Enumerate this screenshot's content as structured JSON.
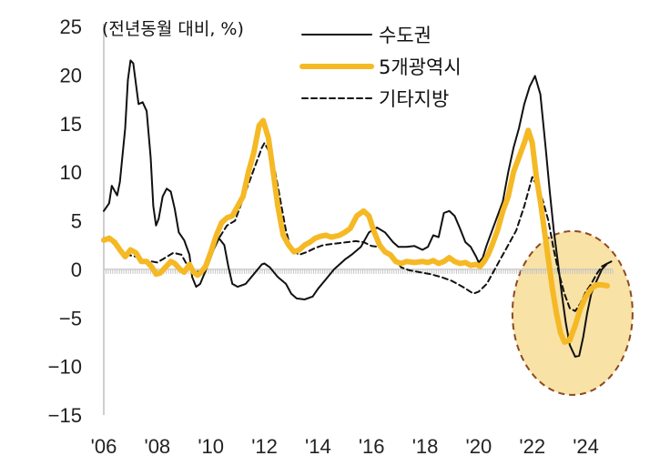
{
  "chart_data": {
    "type": "line",
    "unit_label": "(전년동월 대비, %)",
    "xlabel": "",
    "ylabel": "",
    "xlim": [
      2006,
      2025
    ],
    "ylim": [
      -15,
      25
    ],
    "y_ticks": [
      25,
      20,
      15,
      10,
      5,
      0,
      -5,
      -10,
      -15
    ],
    "y_tick_labels": [
      "25",
      "20",
      "15",
      "10",
      "5",
      "0",
      "−5",
      "−10",
      "−15"
    ],
    "x_ticks": [
      2006,
      2008,
      2010,
      2012,
      2014,
      2016,
      2018,
      2020,
      2022,
      2024
    ],
    "x_tick_labels": [
      "'06",
      "'08",
      "'10",
      "'12",
      "'14",
      "'16",
      "'18",
      "'20",
      "'22",
      "'24"
    ],
    "legend_position": "top-right",
    "highlight": {
      "shape": "ellipse",
      "center": [
        2023.5,
        -4.5
      ],
      "note": "circled recent downturn"
    },
    "series": [
      {
        "name": "수도권",
        "color": "#111111",
        "style": "solid",
        "points": [
          [
            2006.0,
            6.0
          ],
          [
            2006.2,
            6.8
          ],
          [
            2006.3,
            8.6
          ],
          [
            2006.5,
            7.6
          ],
          [
            2006.6,
            9.0
          ],
          [
            2006.8,
            14.5
          ],
          [
            2006.9,
            19.5
          ],
          [
            2007.0,
            21.5
          ],
          [
            2007.1,
            21.2
          ],
          [
            2007.3,
            17.0
          ],
          [
            2007.45,
            17.2
          ],
          [
            2007.6,
            16.3
          ],
          [
            2007.75,
            11.5
          ],
          [
            2007.85,
            6.5
          ],
          [
            2007.95,
            4.5
          ],
          [
            2008.05,
            5.2
          ],
          [
            2008.2,
            7.5
          ],
          [
            2008.35,
            8.3
          ],
          [
            2008.5,
            8.0
          ],
          [
            2008.65,
            6.2
          ],
          [
            2008.8,
            3.8
          ],
          [
            2009.0,
            3.0
          ],
          [
            2009.2,
            1.5
          ],
          [
            2009.3,
            -0.8
          ],
          [
            2009.45,
            -1.8
          ],
          [
            2009.6,
            -1.5
          ],
          [
            2009.75,
            -0.5
          ],
          [
            2009.9,
            0.5
          ],
          [
            2010.1,
            2.0
          ],
          [
            2010.3,
            3.2
          ],
          [
            2010.5,
            2.5
          ],
          [
            2010.65,
            0.3
          ],
          [
            2010.8,
            -1.5
          ],
          [
            2011.0,
            -1.8
          ],
          [
            2011.3,
            -1.5
          ],
          [
            2011.6,
            -0.5
          ],
          [
            2011.9,
            0.5
          ],
          [
            2012.0,
            0.6
          ],
          [
            2012.2,
            0.2
          ],
          [
            2012.5,
            -0.8
          ],
          [
            2012.8,
            -1.5
          ],
          [
            2013.0,
            -2.5
          ],
          [
            2013.2,
            -3.0
          ],
          [
            2013.5,
            -3.1
          ],
          [
            2013.8,
            -2.8
          ],
          [
            2014.0,
            -2.0
          ],
          [
            2014.3,
            -1.0
          ],
          [
            2014.6,
            0.0
          ],
          [
            2015.0,
            1.0
          ],
          [
            2015.3,
            1.6
          ],
          [
            2015.6,
            2.3
          ],
          [
            2015.9,
            3.8
          ],
          [
            2016.2,
            4.3
          ],
          [
            2016.5,
            3.8
          ],
          [
            2016.8,
            2.8
          ],
          [
            2017.0,
            2.3
          ],
          [
            2017.3,
            2.3
          ],
          [
            2017.6,
            2.4
          ],
          [
            2017.9,
            2.0
          ],
          [
            2018.1,
            2.3
          ],
          [
            2018.3,
            3.5
          ],
          [
            2018.5,
            3.3
          ],
          [
            2018.7,
            5.8
          ],
          [
            2018.9,
            6.0
          ],
          [
            2019.1,
            5.5
          ],
          [
            2019.3,
            4.2
          ],
          [
            2019.5,
            2.8
          ],
          [
            2019.7,
            2.3
          ],
          [
            2019.9,
            1.3
          ],
          [
            2020.0,
            0.7
          ],
          [
            2020.15,
            1.2
          ],
          [
            2020.3,
            2.5
          ],
          [
            2020.5,
            4.0
          ],
          [
            2020.7,
            5.5
          ],
          [
            2020.9,
            7.0
          ],
          [
            2021.1,
            10.0
          ],
          [
            2021.3,
            12.5
          ],
          [
            2021.5,
            14.5
          ],
          [
            2021.7,
            17.0
          ],
          [
            2021.9,
            18.8
          ],
          [
            2022.1,
            19.9
          ],
          [
            2022.3,
            18.0
          ],
          [
            2022.5,
            12.5
          ],
          [
            2022.65,
            8.0
          ],
          [
            2022.8,
            4.0
          ],
          [
            2022.95,
            0.8
          ],
          [
            2023.1,
            -2.5
          ],
          [
            2023.25,
            -5.5
          ],
          [
            2023.4,
            -7.8
          ],
          [
            2023.6,
            -9.0
          ],
          [
            2023.75,
            -8.9
          ],
          [
            2023.9,
            -7.0
          ],
          [
            2024.05,
            -4.5
          ],
          [
            2024.2,
            -2.5
          ],
          [
            2024.4,
            -1.2
          ],
          [
            2024.6,
            0.0
          ],
          [
            2024.8,
            0.6
          ],
          [
            2024.95,
            0.8
          ]
        ]
      },
      {
        "name": "5개광역시",
        "color": "#F5B925",
        "style": "thick",
        "points": [
          [
            2006.0,
            3.0
          ],
          [
            2006.2,
            3.2
          ],
          [
            2006.4,
            2.8
          ],
          [
            2006.6,
            2.0
          ],
          [
            2006.8,
            1.3
          ],
          [
            2007.0,
            2.0
          ],
          [
            2007.2,
            1.7
          ],
          [
            2007.4,
            0.8
          ],
          [
            2007.6,
            0.8
          ],
          [
            2007.8,
            0.2
          ],
          [
            2007.95,
            -0.5
          ],
          [
            2008.1,
            -0.4
          ],
          [
            2008.3,
            0.2
          ],
          [
            2008.5,
            0.8
          ],
          [
            2008.65,
            0.6
          ],
          [
            2008.85,
            0.0
          ],
          [
            2009.0,
            -0.3
          ],
          [
            2009.2,
            0.5
          ],
          [
            2009.35,
            -0.3
          ],
          [
            2009.5,
            -0.6
          ],
          [
            2009.6,
            -0.4
          ],
          [
            2009.8,
            0.3
          ],
          [
            2010.0,
            1.8
          ],
          [
            2010.2,
            3.5
          ],
          [
            2010.4,
            4.8
          ],
          [
            2010.6,
            5.3
          ],
          [
            2010.8,
            5.5
          ],
          [
            2011.0,
            6.5
          ],
          [
            2011.2,
            7.5
          ],
          [
            2011.4,
            10.0
          ],
          [
            2011.6,
            12.0
          ],
          [
            2011.8,
            14.8
          ],
          [
            2011.95,
            15.3
          ],
          [
            2012.15,
            13.5
          ],
          [
            2012.3,
            10.5
          ],
          [
            2012.5,
            6.5
          ],
          [
            2012.7,
            3.5
          ],
          [
            2012.9,
            2.5
          ],
          [
            2013.1,
            1.8
          ],
          [
            2013.3,
            2.0
          ],
          [
            2013.5,
            2.5
          ],
          [
            2013.7,
            2.8
          ],
          [
            2013.9,
            3.2
          ],
          [
            2014.1,
            3.4
          ],
          [
            2014.3,
            3.5
          ],
          [
            2014.5,
            3.3
          ],
          [
            2014.8,
            3.5
          ],
          [
            2015.0,
            3.8
          ],
          [
            2015.2,
            4.2
          ],
          [
            2015.45,
            5.5
          ],
          [
            2015.7,
            6.0
          ],
          [
            2015.9,
            5.5
          ],
          [
            2016.1,
            3.8
          ],
          [
            2016.3,
            2.5
          ],
          [
            2016.5,
            1.8
          ],
          [
            2016.7,
            1.5
          ],
          [
            2016.9,
            0.8
          ],
          [
            2017.1,
            0.6
          ],
          [
            2017.3,
            0.8
          ],
          [
            2017.6,
            0.7
          ],
          [
            2017.9,
            0.8
          ],
          [
            2018.1,
            0.7
          ],
          [
            2018.3,
            0.9
          ],
          [
            2018.5,
            0.6
          ],
          [
            2018.7,
            0.8
          ],
          [
            2018.9,
            1.2
          ],
          [
            2019.1,
            0.8
          ],
          [
            2019.3,
            0.6
          ],
          [
            2019.5,
            0.7
          ],
          [
            2019.7,
            0.4
          ],
          [
            2019.9,
            0.5
          ],
          [
            2020.05,
            0.3
          ],
          [
            2020.2,
            0.8
          ],
          [
            2020.35,
            1.5
          ],
          [
            2020.5,
            2.5
          ],
          [
            2020.7,
            4.0
          ],
          [
            2020.9,
            6.0
          ],
          [
            2021.1,
            7.5
          ],
          [
            2021.3,
            10.0
          ],
          [
            2021.5,
            11.5
          ],
          [
            2021.7,
            13.0
          ],
          [
            2021.85,
            14.3
          ],
          [
            2022.0,
            13.0
          ],
          [
            2022.15,
            9.5
          ],
          [
            2022.3,
            7.0
          ],
          [
            2022.45,
            4.0
          ],
          [
            2022.6,
            1.0
          ],
          [
            2022.75,
            -2.0
          ],
          [
            2022.9,
            -4.5
          ],
          [
            2023.05,
            -6.5
          ],
          [
            2023.2,
            -7.5
          ],
          [
            2023.4,
            -7.3
          ],
          [
            2023.6,
            -5.8
          ],
          [
            2023.8,
            -4.0
          ],
          [
            2024.0,
            -2.8
          ],
          [
            2024.2,
            -2.0
          ],
          [
            2024.4,
            -1.6
          ],
          [
            2024.6,
            -1.6
          ],
          [
            2024.8,
            -1.7
          ]
        ]
      },
      {
        "name": "기타지방",
        "color": "#111111",
        "style": "dashed",
        "points": [
          [
            2006.0,
            3.2
          ],
          [
            2006.3,
            2.8
          ],
          [
            2006.6,
            2.0
          ],
          [
            2006.9,
            1.5
          ],
          [
            2007.2,
            1.3
          ],
          [
            2007.5,
            0.9
          ],
          [
            2007.8,
            0.8
          ],
          [
            2008.0,
            0.7
          ],
          [
            2008.3,
            1.2
          ],
          [
            2008.6,
            1.7
          ],
          [
            2008.9,
            1.5
          ],
          [
            2009.1,
            0.5
          ],
          [
            2009.4,
            -0.3
          ],
          [
            2009.6,
            -0.2
          ],
          [
            2009.8,
            0.5
          ],
          [
            2010.0,
            1.5
          ],
          [
            2010.3,
            3.2
          ],
          [
            2010.6,
            4.5
          ],
          [
            2010.9,
            5.0
          ],
          [
            2011.1,
            6.5
          ],
          [
            2011.3,
            8.0
          ],
          [
            2011.5,
            9.5
          ],
          [
            2011.7,
            11.0
          ],
          [
            2011.9,
            12.5
          ],
          [
            2012.0,
            13.0
          ],
          [
            2012.2,
            12.0
          ],
          [
            2012.4,
            10.0
          ],
          [
            2012.6,
            7.0
          ],
          [
            2012.8,
            4.0
          ],
          [
            2013.0,
            2.0
          ],
          [
            2013.3,
            1.5
          ],
          [
            2013.6,
            1.8
          ],
          [
            2013.9,
            2.2
          ],
          [
            2014.2,
            2.5
          ],
          [
            2014.5,
            2.6
          ],
          [
            2014.8,
            2.7
          ],
          [
            2015.1,
            2.8
          ],
          [
            2015.4,
            2.9
          ],
          [
            2015.7,
            2.8
          ],
          [
            2016.0,
            2.4
          ],
          [
            2016.3,
            2.3
          ],
          [
            2016.6,
            1.8
          ],
          [
            2016.9,
            1.0
          ],
          [
            2017.1,
            0.2
          ],
          [
            2017.4,
            -0.1
          ],
          [
            2017.8,
            -0.3
          ],
          [
            2018.2,
            -0.5
          ],
          [
            2018.6,
            -0.8
          ],
          [
            2019.0,
            -1.2
          ],
          [
            2019.4,
            -1.8
          ],
          [
            2019.8,
            -2.5
          ],
          [
            2020.0,
            -2.3
          ],
          [
            2020.3,
            -1.5
          ],
          [
            2020.5,
            -0.5
          ],
          [
            2020.8,
            1.0
          ],
          [
            2021.1,
            2.5
          ],
          [
            2021.4,
            4.0
          ],
          [
            2021.7,
            6.5
          ],
          [
            2022.0,
            9.5
          ],
          [
            2022.2,
            8.5
          ],
          [
            2022.4,
            7.0
          ],
          [
            2022.6,
            5.0
          ],
          [
            2022.8,
            2.0
          ],
          [
            2023.0,
            -0.5
          ],
          [
            2023.2,
            -2.5
          ],
          [
            2023.4,
            -4.0
          ],
          [
            2023.6,
            -4.3
          ],
          [
            2023.8,
            -3.5
          ],
          [
            2024.0,
            -2.3
          ],
          [
            2024.2,
            -1.5
          ],
          [
            2024.4,
            -0.5
          ],
          [
            2024.6,
            0.3
          ],
          [
            2024.8,
            0.6
          ]
        ]
      }
    ]
  }
}
